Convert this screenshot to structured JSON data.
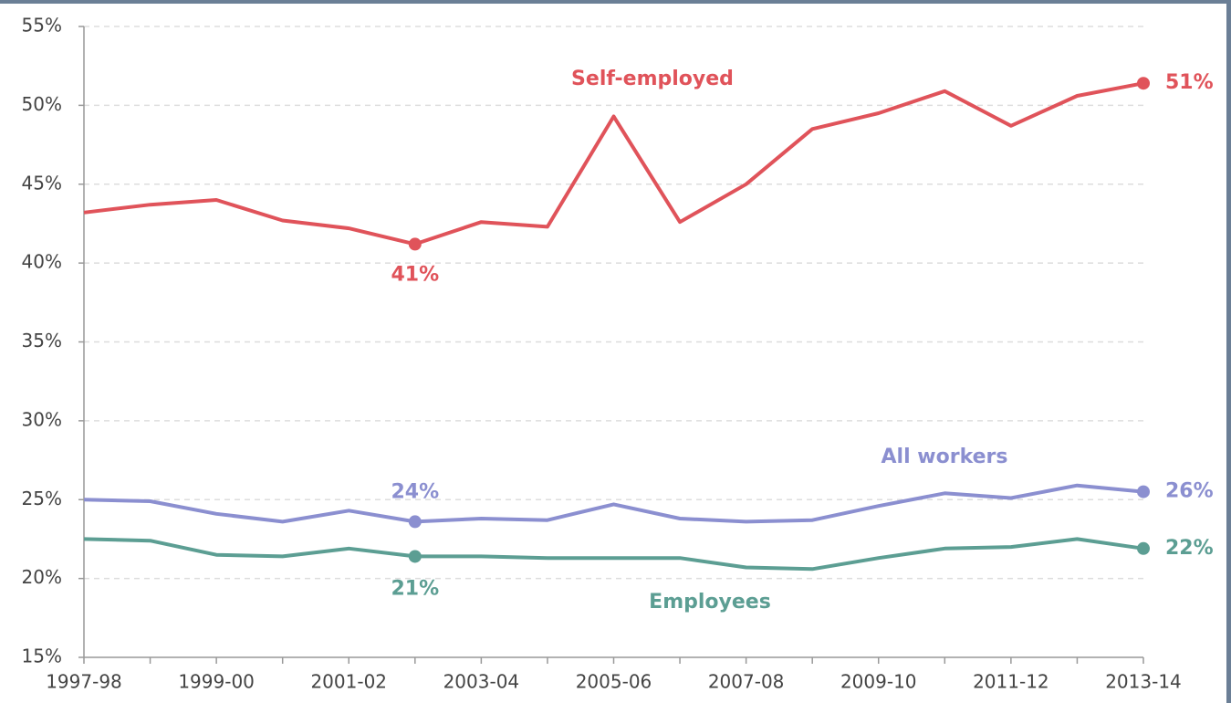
{
  "chart_data": {
    "type": "line",
    "categories": [
      "1997-98",
      null,
      "1999-00",
      null,
      "2001-02",
      null,
      "2003-04",
      null,
      "2005-06",
      null,
      "2007-08",
      null,
      "2009-10",
      null,
      "2011-12",
      null,
      "2013-14"
    ],
    "series": [
      {
        "name": "Self-employed",
        "color": "#e0535a",
        "values": [
          43.2,
          43.7,
          44.0,
          42.7,
          42.2,
          41.2,
          42.6,
          42.3,
          49.3,
          42.6,
          45.0,
          48.5,
          49.5,
          50.9,
          48.7,
          50.6,
          51.4
        ],
        "value_labels": [
          null,
          null,
          null,
          null,
          null,
          "41%",
          null,
          null,
          null,
          null,
          null,
          null,
          null,
          null,
          null,
          null,
          "51%"
        ]
      },
      {
        "name": "All workers",
        "color": "#8b8fd0",
        "values": [
          25.0,
          24.9,
          24.1,
          23.6,
          24.3,
          23.6,
          23.8,
          23.7,
          24.7,
          23.8,
          23.6,
          23.7,
          24.6,
          25.4,
          25.1,
          25.9,
          25.5
        ],
        "value_labels": [
          null,
          null,
          null,
          null,
          null,
          "24%",
          null,
          null,
          null,
          null,
          null,
          null,
          null,
          null,
          null,
          null,
          "26%"
        ]
      },
      {
        "name": "Employees",
        "color": "#5c9e93",
        "values": [
          22.5,
          22.4,
          21.5,
          21.4,
          21.9,
          21.4,
          21.4,
          21.3,
          21.3,
          21.3,
          20.7,
          20.6,
          21.3,
          21.9,
          22.0,
          22.5,
          21.9
        ],
        "value_labels": [
          null,
          null,
          null,
          null,
          null,
          "21%",
          null,
          null,
          null,
          null,
          null,
          null,
          null,
          null,
          null,
          null,
          "22%"
        ]
      }
    ],
    "ylim": [
      15,
      55
    ],
    "yticks": [
      {
        "value": 15,
        "label": "15%"
      },
      {
        "value": 20,
        "label": "20%"
      },
      {
        "value": 25,
        "label": "25%"
      },
      {
        "value": 30,
        "label": "30%"
      },
      {
        "value": 35,
        "label": "35%"
      },
      {
        "value": 40,
        "label": "40%"
      },
      {
        "value": 45,
        "label": "45%"
      },
      {
        "value": 50,
        "label": "50%"
      },
      {
        "value": 55,
        "label": "55%"
      }
    ],
    "grid": true
  }
}
